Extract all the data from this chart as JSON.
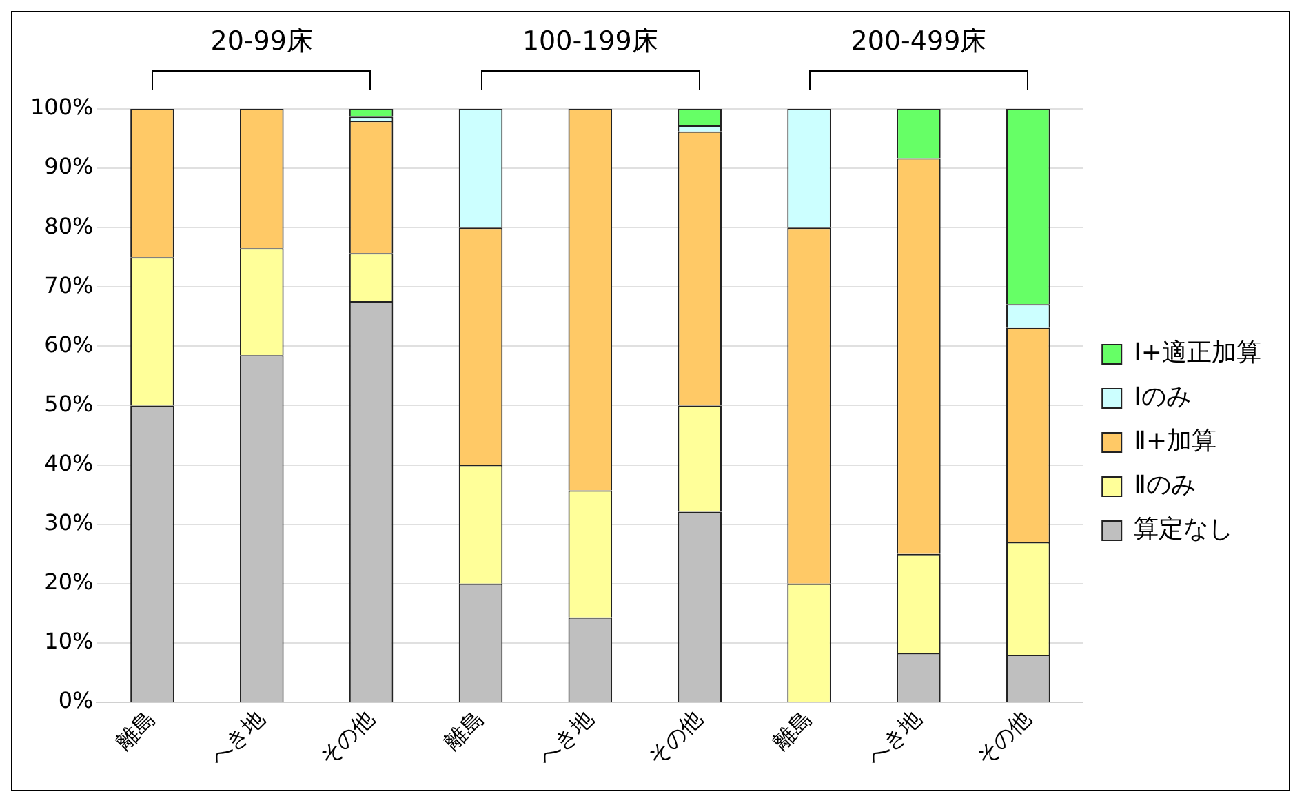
{
  "chart_data": {
    "type": "bar",
    "stacked": true,
    "categories": [
      "離島",
      "へき地",
      "その他",
      "離島",
      "へき地",
      "その他",
      "離島",
      "へき地",
      "その他"
    ],
    "annotations": [
      "20-99床",
      "100-199床",
      "200-499床"
    ],
    "series": [
      {
        "name": "算定なし",
        "color": "#bfbfbf",
        "values": [
          50,
          58.5,
          67.6,
          20,
          14.3,
          32.1,
          0,
          8.3,
          8
        ]
      },
      {
        "name": "Ⅱのみ",
        "color": "#ffff99",
        "values": [
          25,
          18,
          8.1,
          20,
          21.4,
          17.9,
          20,
          16.7,
          19
        ]
      },
      {
        "name": "Ⅱ+加算",
        "color": "#ffc966",
        "values": [
          25,
          23.5,
          22.3,
          40,
          64.3,
          46.2,
          60,
          66.7,
          36.1
        ]
      },
      {
        "name": "Ⅰのみ",
        "color": "#ccffff",
        "values": [
          0,
          0,
          0.7,
          20,
          0,
          1,
          20,
          0,
          4
        ]
      },
      {
        "name": "Ⅰ+適正加算",
        "color": "#66ff66",
        "values": [
          0,
          0,
          1.3,
          0,
          0,
          2.8,
          0,
          8.3,
          32.9
        ]
      }
    ],
    "ylim": [
      0,
      100
    ],
    "yticks": [
      {
        "value": 0,
        "label": "0%"
      },
      {
        "value": 10,
        "label": "10%"
      },
      {
        "value": 20,
        "label": "20%"
      },
      {
        "value": 30,
        "label": "30%"
      },
      {
        "value": 40,
        "label": "40%"
      },
      {
        "value": 50,
        "label": "50%"
      },
      {
        "value": 60,
        "label": "60%"
      },
      {
        "value": 70,
        "label": "70%"
      },
      {
        "value": 80,
        "label": "80%"
      },
      {
        "value": 90,
        "label": "90%"
      },
      {
        "value": 100,
        "label": "100%"
      }
    ],
    "grid": "y",
    "legend": "right"
  }
}
